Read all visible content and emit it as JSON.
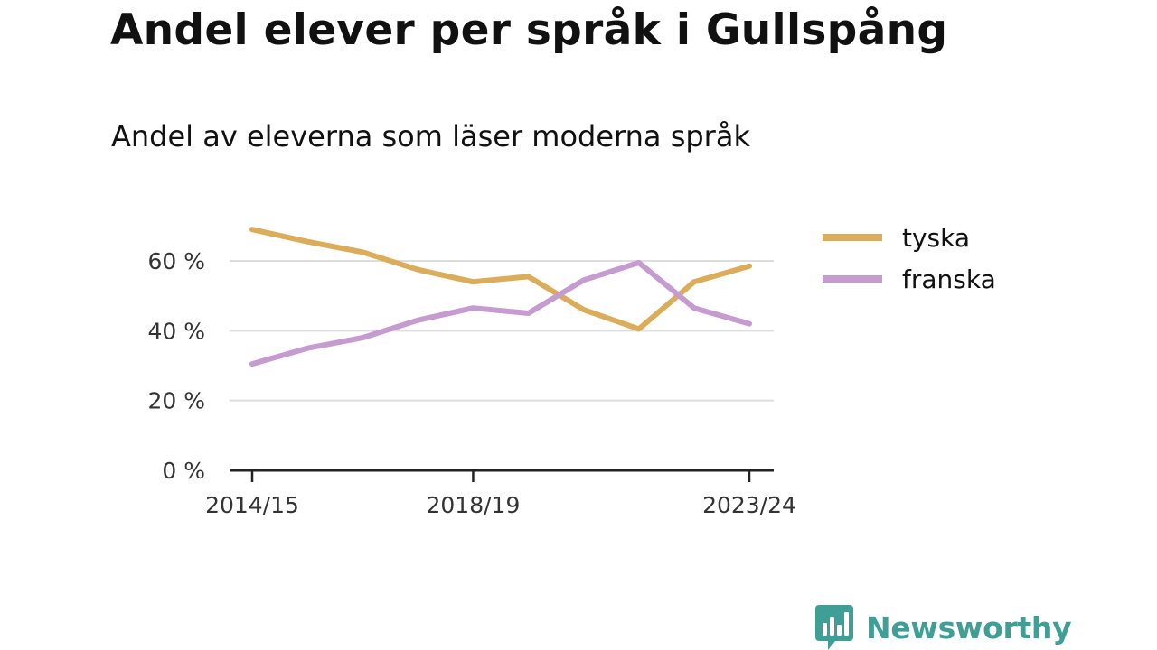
{
  "title": "Andel elever per språk i Gullspång",
  "subtitle": "Andel av eleverna som läser moderna språk",
  "brand": {
    "name": "Newsworthy",
    "icon": "newsworthy-bar-chart-icon",
    "color": "#3f9e95"
  },
  "chart_data": {
    "type": "line",
    "x": [
      "2014/15",
      "2015/16",
      "2016/17",
      "2017/18",
      "2018/19",
      "2019/20",
      "2020/21",
      "2021/22",
      "2022/23",
      "2023/24"
    ],
    "x_ticks": [
      "2014/15",
      "2018/19",
      "2023/24"
    ],
    "y_ticks": [
      0,
      20,
      40,
      60
    ],
    "y_tick_labels": [
      "0 %",
      "20 %",
      "40 %",
      "60 %"
    ],
    "ylim": [
      0,
      70
    ],
    "grid": true,
    "legend": "right",
    "series": [
      {
        "name": "tyska",
        "color": "#dbad5b",
        "values": [
          69,
          65.5,
          62.5,
          57.5,
          54,
          55.5,
          46,
          40.5,
          54,
          58.5
        ]
      },
      {
        "name": "franska",
        "color": "#c59bd0",
        "values": [
          30.5,
          35,
          38,
          43,
          46.5,
          45,
          54.5,
          59.5,
          46.5,
          42
        ]
      }
    ]
  }
}
